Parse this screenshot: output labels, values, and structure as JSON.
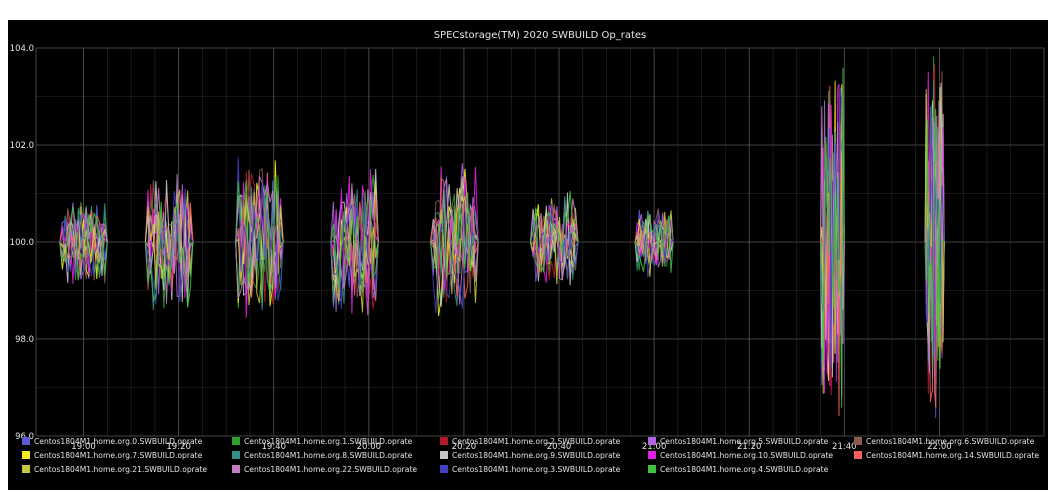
{
  "chart_data": {
    "type": "line",
    "title": "SPECstorage(TM) 2020 SWBUILD Op_rates",
    "xlabel": "",
    "ylabel": "",
    "x_ticks": [
      "19:00",
      "19:20",
      "19:40",
      "20:00",
      "20:20",
      "20:40",
      "21:00",
      "21:20",
      "21:40",
      "22:00"
    ],
    "y_ticks": [
      "104.0",
      "102.0",
      "100.0",
      "98.0",
      "96.0"
    ],
    "xlim": [
      "18:50",
      "22:22"
    ],
    "ylim": [
      96.0,
      104.0
    ],
    "grid": true,
    "legend_position": "bottom",
    "bursts": [
      {
        "start": "18:55",
        "end": "19:05",
        "spread": 1.0
      },
      {
        "start": "19:13",
        "end": "19:23",
        "spread": 1.6
      },
      {
        "start": "19:32",
        "end": "19:42",
        "spread": 1.9
      },
      {
        "start": "19:52",
        "end": "20:02",
        "spread": 1.7
      },
      {
        "start": "20:13",
        "end": "20:23",
        "spread": 1.8
      },
      {
        "start": "20:34",
        "end": "20:44",
        "spread": 1.1
      },
      {
        "start": "20:56",
        "end": "21:04",
        "spread": 0.8
      },
      {
        "start": "21:35",
        "end": "21:40",
        "spread": 4.0
      },
      {
        "start": "21:57",
        "end": "22:01",
        "spread": 4.0
      }
    ],
    "series": [
      {
        "name": "Centos1804M1.home.org.0.SWBUILD.oprate",
        "color": "#5b5bd6"
      },
      {
        "name": "Centos1804M1.home.org.1.SWBUILD.oprate",
        "color": "#2fa02f"
      },
      {
        "name": "Centos1804M1.home.org.2.SWBUILD.oprate",
        "color": "#b01a2a"
      },
      {
        "name": "Centos1804M1.home.org.5.SWBUILD.oprate",
        "color": "#b064e0"
      },
      {
        "name": "Centos1804M1.home.org.6.SWBUILD.oprate",
        "color": "#8a5a4a"
      },
      {
        "name": "Centos1804M1.home.org.7.SWBUILD.oprate",
        "color": "#f0f020"
      },
      {
        "name": "Centos1804M1.home.org.8.SWBUILD.oprate",
        "color": "#2f8f8f"
      },
      {
        "name": "Centos1804M1.home.org.9.SWBUILD.oprate",
        "color": "#c8c8c8"
      },
      {
        "name": "Centos1804M1.home.org.10.SWBUILD.oprate",
        "color": "#e020e0"
      },
      {
        "name": "Centos1804M1.home.org.14.SWBUILD.oprate",
        "color": "#f06060"
      },
      {
        "name": "Centos1804M1.home.org.21.SWBUILD.oprate",
        "color": "#c8c840"
      },
      {
        "name": "Centos1804M1.home.org.22.SWBUILD.oprate",
        "color": "#c080c0"
      },
      {
        "name": "Centos1804M1.home.org.3.SWBUILD.oprate",
        "color": "#4040c0"
      },
      {
        "name": "Centos1804M1.home.org.4.SWBUILD.oprate",
        "color": "#40c040"
      }
    ]
  }
}
